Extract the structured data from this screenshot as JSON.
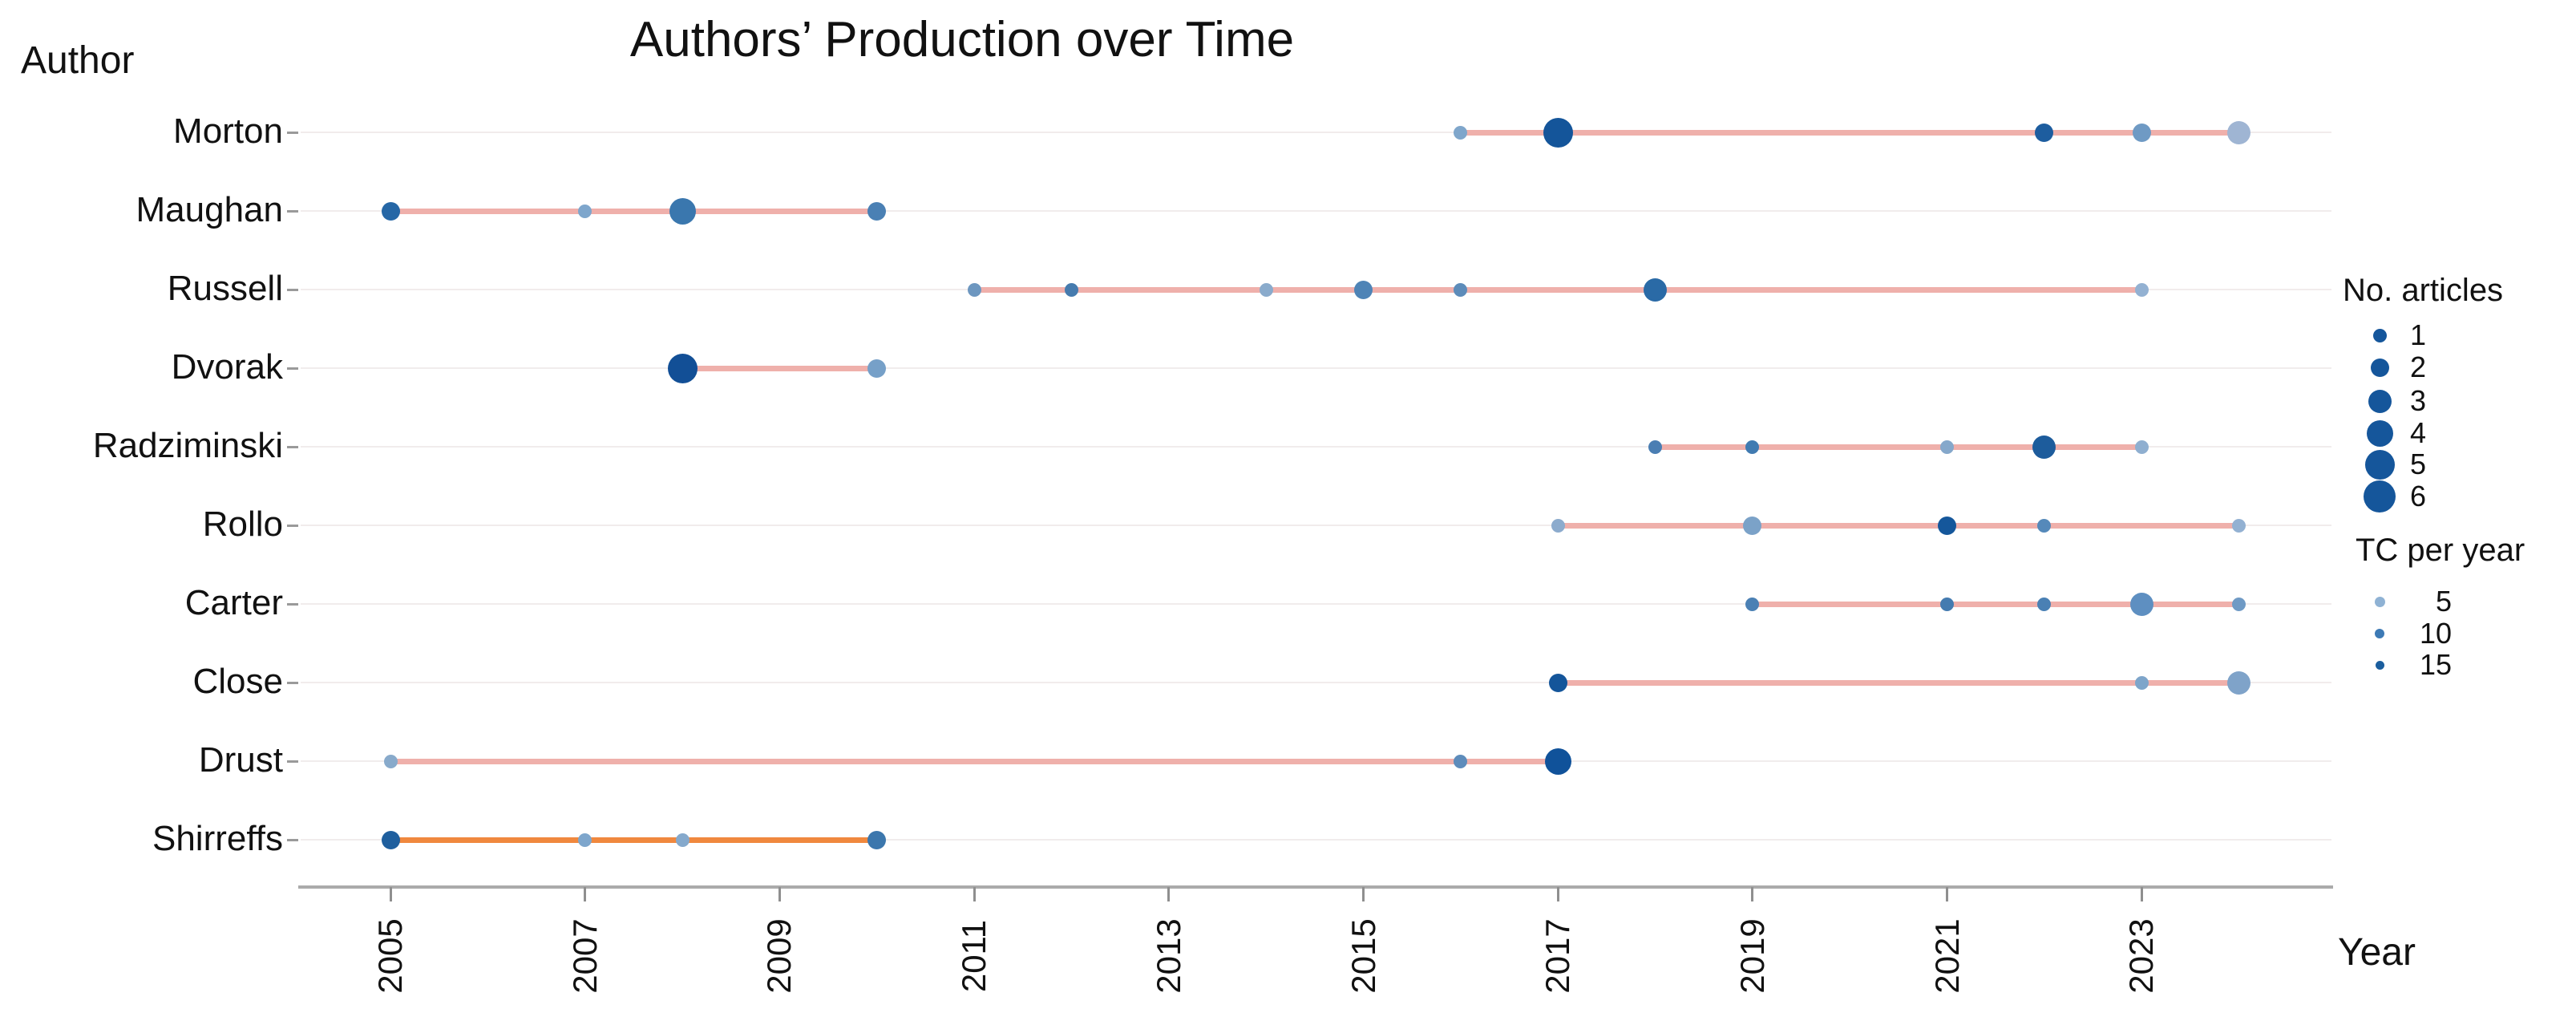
{
  "title": "Authors’ Production over Time",
  "y_axis_title": "Author",
  "x_axis_title": "Year",
  "legend": {
    "size_title": "No. articles",
    "size_items": [
      {
        "label": "1",
        "n": 1
      },
      {
        "label": "2",
        "n": 2
      },
      {
        "label": "3",
        "n": 3
      },
      {
        "label": "4",
        "n": 4
      },
      {
        "label": "5",
        "n": 5
      },
      {
        "label": "6",
        "n": 6
      }
    ],
    "color_title": "TC per year",
    "color_items": [
      {
        "label": "5",
        "color": "#8FB2D4"
      },
      {
        "label": "10",
        "color": "#3D7AB5"
      },
      {
        "label": "15",
        "color": "#1B5E9E"
      }
    ]
  },
  "chart_data": {
    "type": "scatter",
    "title": "Authors’ Production over Time",
    "xlabel": "Year",
    "ylabel": "Author",
    "x_ticks": [
      2005,
      2007,
      2009,
      2011,
      2013,
      2015,
      2017,
      2019,
      2021,
      2023
    ],
    "x_range": [
      2004.2,
      2024.9
    ],
    "grid": false,
    "legend_position": "right",
    "timeline_default_color": "#EFB0AB",
    "timeline_highlight_color": "#F0883E",
    "authors": [
      {
        "name": "Morton",
        "line": [
          2016,
          2024
        ],
        "line_color": "#EFB0AB",
        "points": [
          {
            "year": 2016,
            "articles": 1,
            "tc_color": "#7FA6CB"
          },
          {
            "year": 2017,
            "articles": 5,
            "tc_color": "#14559A"
          },
          {
            "year": 2022,
            "articles": 2,
            "tc_color": "#1D5D9F"
          },
          {
            "year": 2023,
            "articles": 2,
            "tc_color": "#6F9AC4"
          },
          {
            "year": 2024,
            "articles": 3,
            "tc_color": "#9FB5D3"
          }
        ]
      },
      {
        "name": "Maughan",
        "line": [
          2005,
          2010
        ],
        "line_color": "#EFB0AB",
        "points": [
          {
            "year": 2005,
            "articles": 2,
            "tc_color": "#2667A6"
          },
          {
            "year": 2007,
            "articles": 1,
            "tc_color": "#7EA6CC"
          },
          {
            "year": 2008,
            "articles": 4,
            "tc_color": "#3A77AE"
          },
          {
            "year": 2010,
            "articles": 2,
            "tc_color": "#4A80B4"
          }
        ]
      },
      {
        "name": "Russell",
        "line": [
          2011,
          2023
        ],
        "line_color": "#EFB0AB",
        "points": [
          {
            "year": 2011,
            "articles": 1,
            "tc_color": "#6D97C0"
          },
          {
            "year": 2012,
            "articles": 1,
            "tc_color": "#467BAE"
          },
          {
            "year": 2014,
            "articles": 1,
            "tc_color": "#8AABCC"
          },
          {
            "year": 2015,
            "articles": 2,
            "tc_color": "#4E84B6"
          },
          {
            "year": 2016,
            "articles": 1,
            "tc_color": "#5D8CBA"
          },
          {
            "year": 2018,
            "articles": 3,
            "tc_color": "#2A6AA6"
          },
          {
            "year": 2023,
            "articles": 1,
            "tc_color": "#93B1D2"
          }
        ]
      },
      {
        "name": "Dvorak",
        "line": [
          2008,
          2010
        ],
        "line_color": "#EFB0AB",
        "points": [
          {
            "year": 2008,
            "articles": 5,
            "tc_color": "#124F96"
          },
          {
            "year": 2010,
            "articles": 2,
            "tc_color": "#76A0C8"
          }
        ]
      },
      {
        "name": "Radziminski",
        "line": [
          2018,
          2023
        ],
        "line_color": "#EFB0AB",
        "points": [
          {
            "year": 2018,
            "articles": 1,
            "tc_color": "#4A7EB3"
          },
          {
            "year": 2019,
            "articles": 1,
            "tc_color": "#417BB1"
          },
          {
            "year": 2021,
            "articles": 1,
            "tc_color": "#85A8CB"
          },
          {
            "year": 2022,
            "articles": 3,
            "tc_color": "#1D5C9C"
          },
          {
            "year": 2023,
            "articles": 1,
            "tc_color": "#8FAFD0"
          }
        ]
      },
      {
        "name": "Rollo",
        "line": [
          2017,
          2024
        ],
        "line_color": "#EFB0AB",
        "points": [
          {
            "year": 2017,
            "articles": 1,
            "tc_color": "#8CABCD"
          },
          {
            "year": 2019,
            "articles": 2,
            "tc_color": "#7BA2C8"
          },
          {
            "year": 2021,
            "articles": 2,
            "tc_color": "#15579B"
          },
          {
            "year": 2022,
            "articles": 1,
            "tc_color": "#5589BA"
          },
          {
            "year": 2024,
            "articles": 1,
            "tc_color": "#93B1D2"
          }
        ]
      },
      {
        "name": "Carter",
        "line": [
          2019,
          2024
        ],
        "line_color": "#EFB0AB",
        "points": [
          {
            "year": 2019,
            "articles": 1,
            "tc_color": "#4B80B4"
          },
          {
            "year": 2021,
            "articles": 1,
            "tc_color": "#447BB0"
          },
          {
            "year": 2022,
            "articles": 1,
            "tc_color": "#4A80B4"
          },
          {
            "year": 2023,
            "articles": 3,
            "tc_color": "#5E8FC1"
          },
          {
            "year": 2024,
            "articles": 1,
            "tc_color": "#6F9AC5"
          }
        ]
      },
      {
        "name": "Close",
        "line": [
          2017,
          2024
        ],
        "line_color": "#EFB0AB",
        "points": [
          {
            "year": 2017,
            "articles": 2,
            "tc_color": "#14559A"
          },
          {
            "year": 2023,
            "articles": 1,
            "tc_color": "#7EA5CA"
          },
          {
            "year": 2024,
            "articles": 3,
            "tc_color": "#7FA3C9"
          }
        ]
      },
      {
        "name": "Drust",
        "line": [
          2005,
          2017
        ],
        "line_color": "#EFB0AB",
        "points": [
          {
            "year": 2005,
            "articles": 1,
            "tc_color": "#88AACB"
          },
          {
            "year": 2016,
            "articles": 1,
            "tc_color": "#5D8CBB"
          },
          {
            "year": 2017,
            "articles": 4,
            "tc_color": "#10529A"
          }
        ]
      },
      {
        "name": "Shirreffs",
        "line": [
          2005,
          2010
        ],
        "line_color": "#F0883E",
        "points": [
          {
            "year": 2005,
            "articles": 2,
            "tc_color": "#1F5F9E"
          },
          {
            "year": 2007,
            "articles": 1,
            "tc_color": "#7EA6CC"
          },
          {
            "year": 2008,
            "articles": 1,
            "tc_color": "#85A9CC"
          },
          {
            "year": 2010,
            "articles": 2,
            "tc_color": "#3C77AD"
          }
        ]
      }
    ]
  }
}
